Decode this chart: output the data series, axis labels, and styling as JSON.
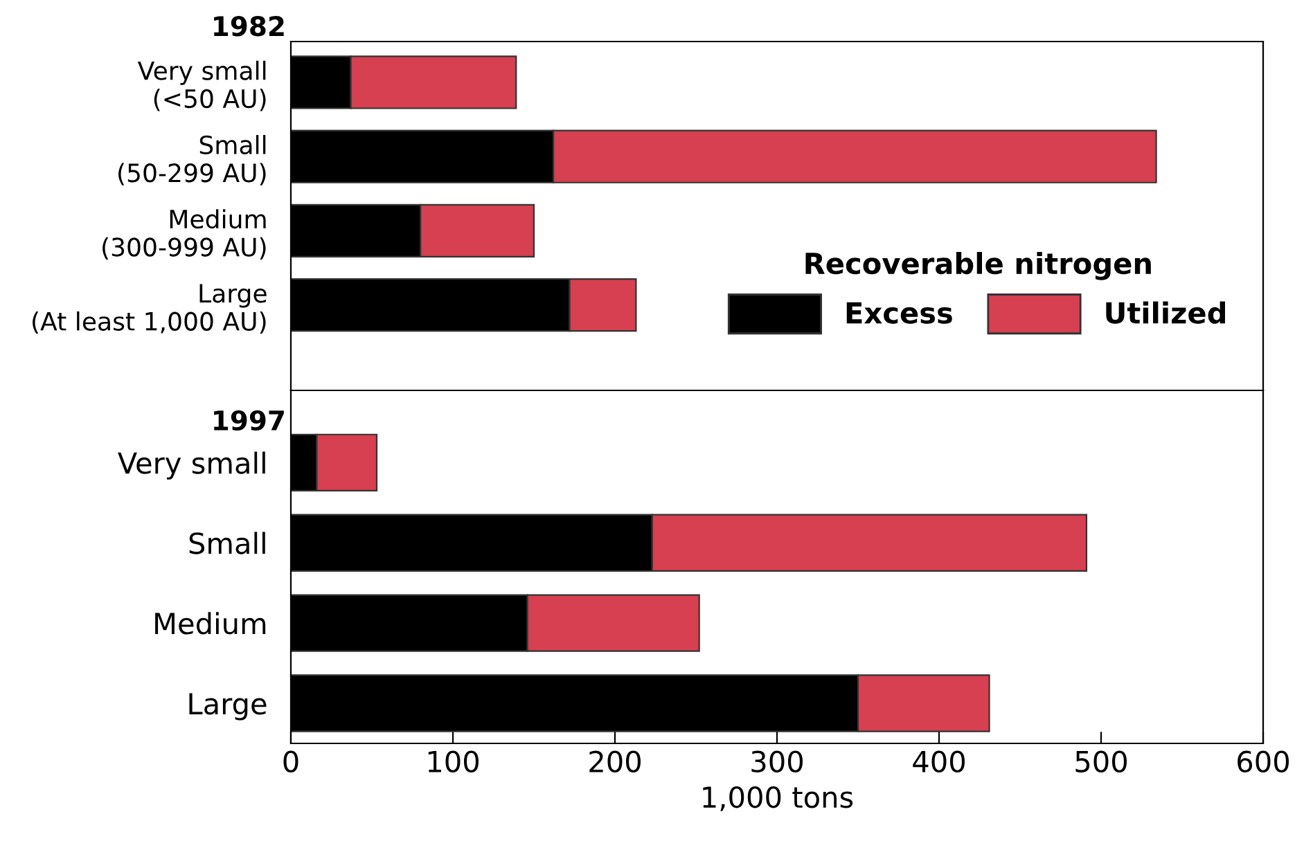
{
  "chart_data": [
    {
      "type": "bar",
      "orientation": "horizontal",
      "stacked": true,
      "title": "1982",
      "categories": [
        "Very small\n(<50 AU)",
        "Small\n(50-299 AU)",
        "Medium\n(300-999 AU)",
        "Large\n(At least 1,000 AU)"
      ],
      "series": [
        {
          "name": "Excess",
          "color": "#000000",
          "values": [
            37,
            162,
            80,
            172
          ]
        },
        {
          "name": "Utilized",
          "color": "#d64050",
          "values": [
            102,
            372,
            70,
            41
          ]
        }
      ],
      "xlim": [
        0,
        600
      ],
      "xticks": [
        0,
        100,
        200,
        300,
        400,
        500,
        600
      ],
      "tick_labels": "y",
      "legend": "right",
      "legend_title": "Recoverable nitrogen"
    },
    {
      "type": "bar",
      "orientation": "horizontal",
      "stacked": true,
      "title": "1997",
      "categories": [
        "Very small",
        "Small",
        "Medium",
        "Large"
      ],
      "series": [
        {
          "color": "#000000",
          "values": [
            16,
            223,
            146,
            350
          ]
        },
        {
          "color": "#d64050",
          "values": [
            37,
            268,
            106,
            81
          ]
        }
      ],
      "xlim": [
        0,
        600
      ],
      "xticks": [
        0,
        100,
        200,
        300,
        400,
        500,
        600
      ],
      "xlabel": "1,000 tons"
    }
  ]
}
